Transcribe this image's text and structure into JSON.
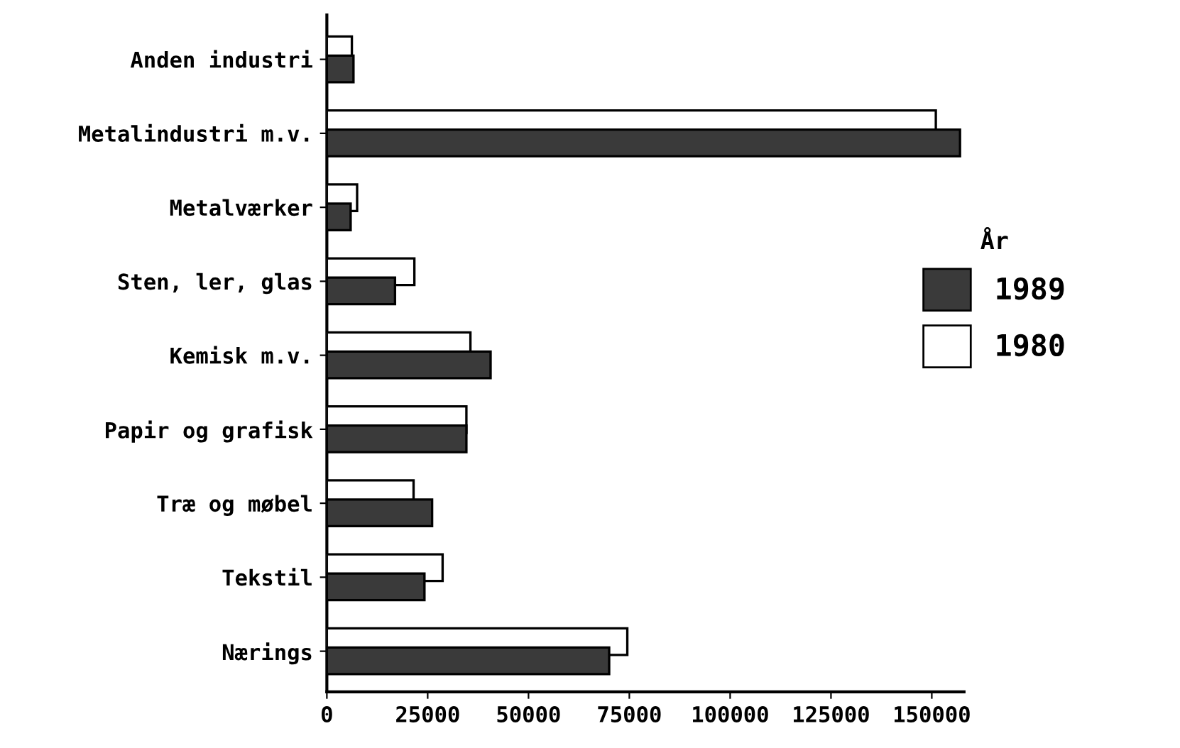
{
  "chart_data": {
    "type": "bar",
    "orientation": "horizontal",
    "categories": [
      "Anden industri",
      "Metalindustri m.v.",
      "Metalværker",
      "Sten, ler, glas",
      "Kemisk m.v.",
      "Papir og grafisk",
      "Træ og møbel",
      "Tekstil",
      "Nærings"
    ],
    "series": [
      {
        "name": "1989",
        "color": "#3a3a3a",
        "values": [
          6600,
          157000,
          5900,
          16900,
          40600,
          34600,
          26100,
          24200,
          70000
        ]
      },
      {
        "name": "1980",
        "color": "#ffffff",
        "values": [
          6200,
          151000,
          7500,
          21700,
          35600,
          34600,
          21500,
          28700,
          74500
        ]
      }
    ],
    "legend_title": "År",
    "legend": "right",
    "xlim": [
      0,
      158000
    ],
    "xticks": [
      0,
      25000,
      50000,
      75000,
      100000,
      125000,
      150000
    ],
    "grid": false
  }
}
